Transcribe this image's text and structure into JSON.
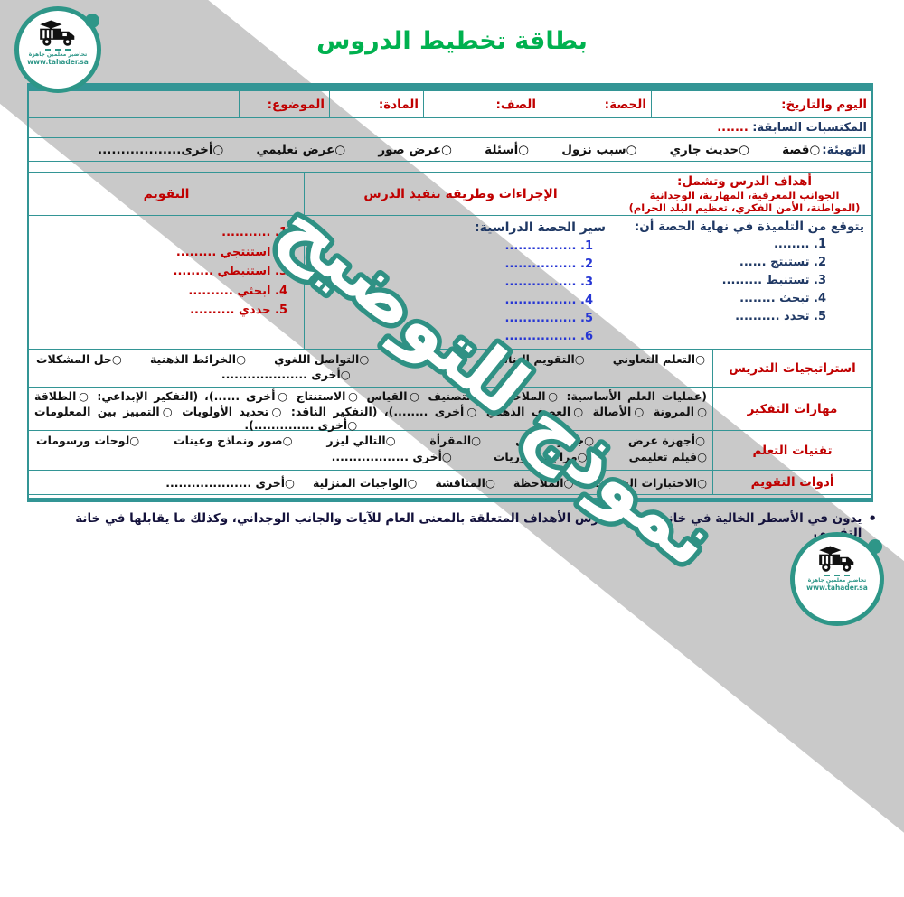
{
  "title": "بطاقة تخطيط الدروس",
  "watermark": "نموذج للتوضيح",
  "footnote_bullet": "•",
  "footnote": "يدون في الأسطر الخالية في خانة أهداف الدرس الأهداف المتعلقة بالمعنى العام للآيات والجانب الوجداني، وكذلك ما يقابلها في خانة التقويم.",
  "logo": {
    "tagline": "تحاضير معلمين جاهزة",
    "url": "www.tahader.sa"
  },
  "info_row": {
    "day_date": "اليوم والتاريخ:",
    "period": "الحصة:",
    "grade": "الصف:",
    "subject": "المادة:",
    "topic": "الموضوع:"
  },
  "prior": {
    "label": "المكتسبات السابقة:",
    "dots": " ......."
  },
  "warmup": {
    "label": "التهيئة:",
    "options": [
      "○قصة",
      "○حديث جاري",
      "○سبب نزول",
      "○أسئلة",
      "○عرض صور",
      "○عرض تعليمي",
      "○أخرى.................."
    ]
  },
  "objectives": {
    "header": "أهداف الدرس وتشمل:",
    "sub": "الجوانب المعرفية، المهارية، الوجدانية (المواطنة، الأمن الفكري، تعظيم البلد الحرام)",
    "intro": "يتوقع من التلميذة في نهاية الحصة أن:",
    "items": [
      "1. ........",
      "2. تستنتج ......",
      "3. تستنبط .........",
      "4. تبحث ........",
      "5. تحدد .........."
    ]
  },
  "procedures": {
    "header": "الإجراءات وطريقة تنفيذ الدرس",
    "sub": "سير الحصة الدراسية:",
    "items": [
      "1. ................",
      "2. ................",
      "3. ................",
      "4. ................",
      "5. ................",
      "6. ................"
    ]
  },
  "evaluation": {
    "header": "التقويم",
    "items": [
      "1. ...........",
      "2. استنتجي .........",
      "3. استنبطي .........",
      "4. ابحثي ..........",
      "5. حددي .........."
    ]
  },
  "strategies": {
    "label": "استراتيجيات التدريس",
    "options": [
      "○التعلم التعاوني",
      "○التقويم البنائي",
      "○الاستقصاء",
      "○التواصل اللغوي",
      "○الخرائط الذهنية",
      "○حل المشكلات"
    ],
    "other": "○أخرى ...................."
  },
  "thinking": {
    "label": "مهارات التفكير",
    "line1": "(عمليات العلم الأساسية: ○الملاحظة ○التصنيف ○القياس ○الاستنتاج ○أخرى ......)، (التفكير الإبداعي: ○الطلاقة",
    "line2": "○المرونة ○الأصالة ○العصف الذهني ○أخرى ........)، (التفكير الناقد: ○تحديد الأولويات ○التمييز بين المعلومات",
    "line3": "○أخرى ..............)."
  },
  "tech": {
    "label": "تقنيات التعلم",
    "line1": [
      "○أجهزة عرض",
      "○جهاز تسجيل",
      "○المقرأة",
      "○التالي ليزر",
      "○صور ونماذج وعينات",
      "○لوحات ورسومات"
    ],
    "line2": [
      "○فيلم تعليمي",
      "○مراجع ودوريات",
      "○أخرى .................."
    ]
  },
  "tools": {
    "label": "أدوات التقويم",
    "options": [
      "○الاختبارات الشفوية",
      "○الملاحظة",
      "○المناقشة",
      "○الواجبات المنزلية",
      "○أخرى ...................."
    ]
  },
  "colors": {
    "accent_teal": "#339595",
    "logo_teal": "#2e9688",
    "title_green": "#00b14f",
    "label_red": "#c00000",
    "navy": "#1f3864",
    "list_blue": "#2636d4",
    "band_gray": "#c9c9c9"
  }
}
